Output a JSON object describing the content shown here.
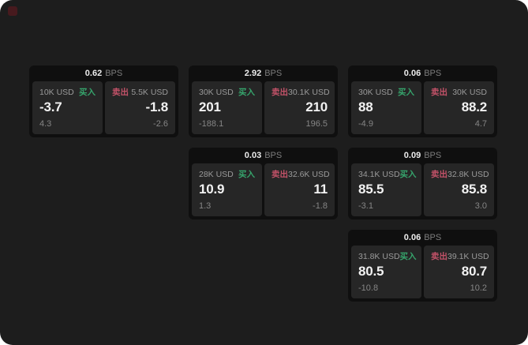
{
  "labels": {
    "bps": "BPS",
    "buy": "买入",
    "sell": "卖出"
  },
  "colors": {
    "screen_bg": "#1d1d1d",
    "card_bg": "#0f0f0f",
    "panel_bg": "#262626",
    "text_primary": "#f2f2f2",
    "text_muted": "#8c8c8c",
    "buy_green": "#36a46c",
    "sell_red": "#c25268"
  },
  "cards": [
    {
      "bps": "0.62",
      "buy": {
        "amount": "10K USD",
        "main": "-3.7",
        "sub": "4.3"
      },
      "sell": {
        "amount": "5.5K USD",
        "main": "-1.8",
        "sub": "-2.6"
      }
    },
    {
      "bps": "2.92",
      "buy": {
        "amount": "30K USD",
        "main": "201",
        "sub": "-188.1"
      },
      "sell": {
        "amount": "30.1K USD",
        "main": "210",
        "sub": "196.5"
      }
    },
    {
      "bps": "0.06",
      "buy": {
        "amount": "30K USD",
        "main": "88",
        "sub": "-4.9"
      },
      "sell": {
        "amount": "30K USD",
        "main": "88.2",
        "sub": "4.7"
      }
    },
    {
      "bps": "0.03",
      "buy": {
        "amount": "28K USD",
        "main": "10.9",
        "sub": "1.3"
      },
      "sell": {
        "amount": "32.6K USD",
        "main": "11",
        "sub": "-1.8"
      }
    },
    {
      "bps": "0.09",
      "buy": {
        "amount": "34.1K USD",
        "main": "85.5",
        "sub": "-3.1"
      },
      "sell": {
        "amount": "32.8K USD",
        "main": "85.8",
        "sub": "3.0"
      }
    },
    {
      "bps": "0.06",
      "buy": {
        "amount": "31.8K USD",
        "main": "80.5",
        "sub": "-10.8"
      },
      "sell": {
        "amount": "39.1K USD",
        "main": "80.7",
        "sub": "10.2"
      }
    }
  ]
}
